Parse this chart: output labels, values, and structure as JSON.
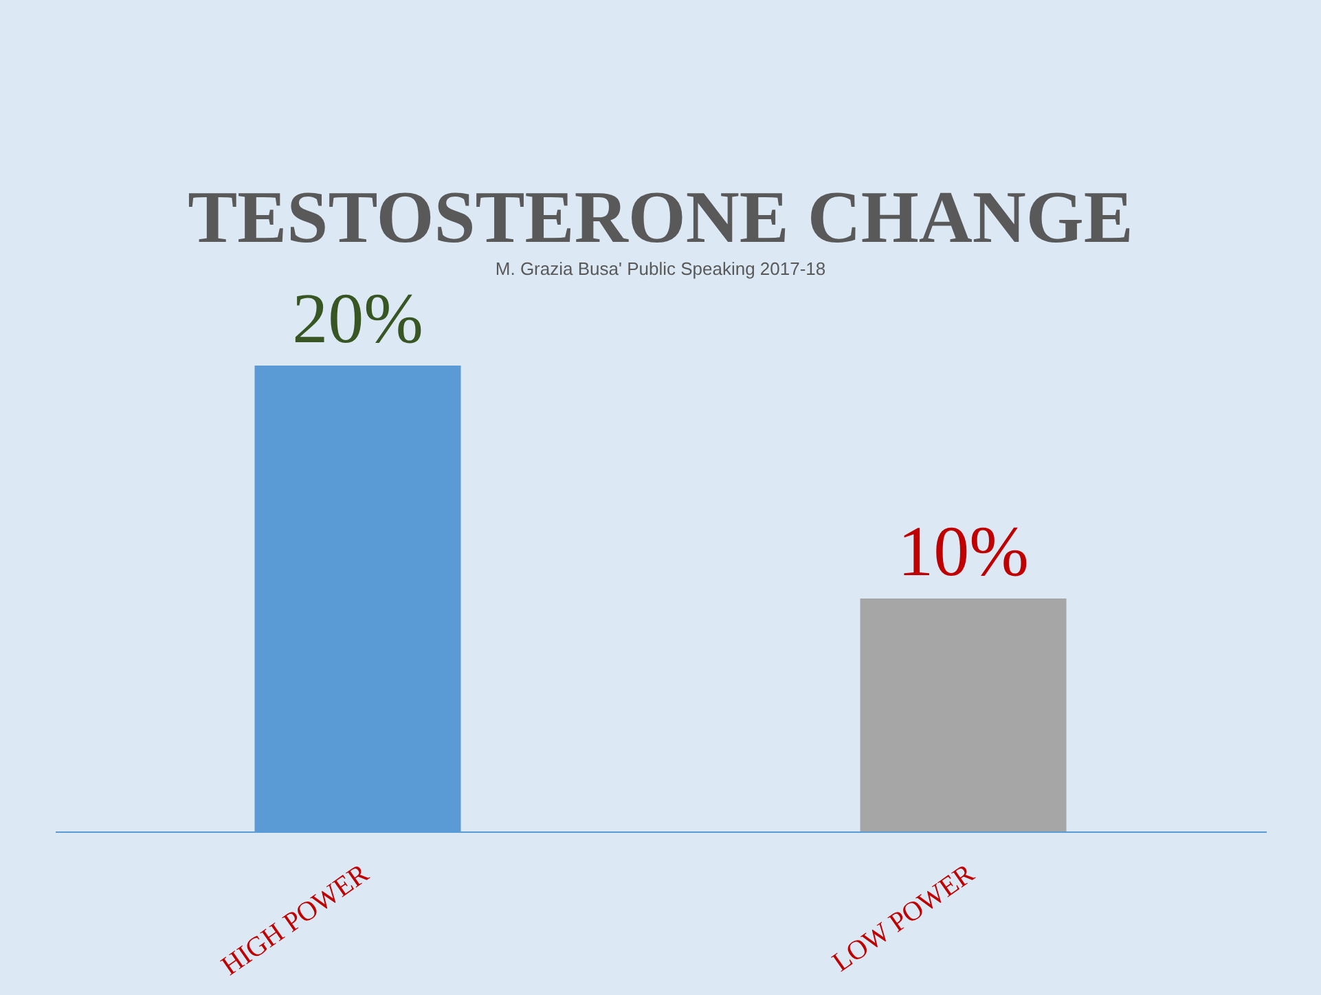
{
  "chart_data": {
    "type": "bar",
    "title": "TESTOSTERONE CHANGE",
    "categories": [
      "HIGH POWER",
      "LOW POWER"
    ],
    "values": [
      20,
      10
    ],
    "colors": [
      "#5b9bd5",
      "#a6a6a6"
    ],
    "value_labels": [
      "20%",
      "10%"
    ],
    "annotations": [
      "M. Grazia Busa' Public Speaking 2017-18"
    ],
    "grid": false
  }
}
